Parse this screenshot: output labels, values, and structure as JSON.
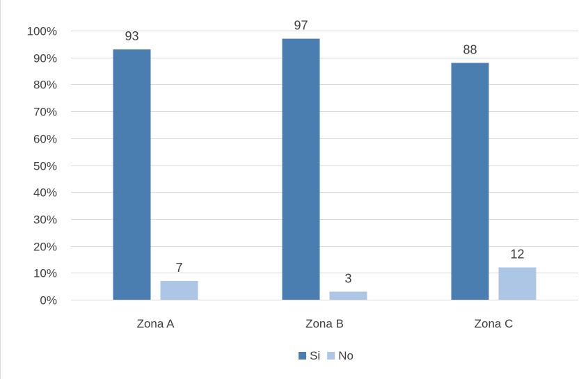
{
  "chart_data": {
    "type": "bar",
    "categories": [
      "Zona A",
      "Zona B",
      "Zona C"
    ],
    "series": [
      {
        "name": "Si",
        "values": [
          93,
          97,
          88
        ],
        "color": "#4a7eb0"
      },
      {
        "name": "No",
        "values": [
          7,
          3,
          12
        ],
        "color": "#aec6e6"
      }
    ],
    "ylim": [
      0,
      100
    ],
    "yticks": [
      "0%",
      "10%",
      "20%",
      "30%",
      "40%",
      "50%",
      "60%",
      "70%",
      "80%",
      "90%",
      "100%"
    ],
    "grid": true,
    "legend": "bottom-center",
    "title": "",
    "xlabel": "",
    "ylabel": ""
  }
}
